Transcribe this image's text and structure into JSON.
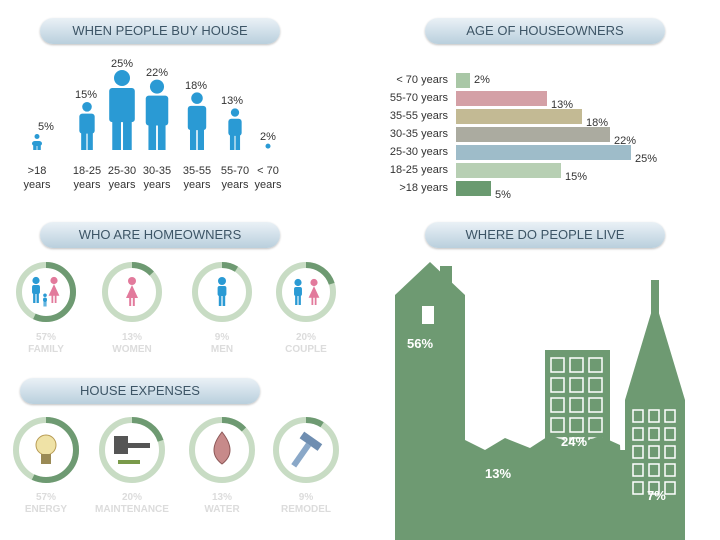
{
  "sections": {
    "when_buy": "WHEN PEOPLE BUY HOUSE",
    "age_owners": "AGE OF HOUSEOWNERS",
    "who_owners": "WHO ARE HOMEOWNERS",
    "where_live": "WHERE DO PEOPLE LIVE",
    "expenses": "HOUSE EXPENSES"
  },
  "colors": {
    "blue": "#2a9ad4",
    "pink": "#e27a9c",
    "green": "#6e9a72",
    "ring": "#c8dcc4",
    "ring_fill": "#6e9a72"
  },
  "chart_data": [
    {
      "type": "bar",
      "title": "WHEN PEOPLE BUY HOUSE",
      "categories": [
        ">18 years",
        "18-25 years",
        "25-30 years",
        "30-35 years",
        "35-55 years",
        "55-70 years",
        "< 70 years"
      ],
      "values": [
        5,
        15,
        25,
        22,
        18,
        13,
        2
      ],
      "value_labels": [
        "5%",
        "15%",
        "25%",
        "22%",
        "18%",
        "13%",
        "2%"
      ],
      "cat_top": [
        ">18",
        "18-25",
        "25-30",
        "30-35",
        "35-55",
        "55-70",
        "< 70"
      ],
      "cat_bottom": [
        "years",
        "years",
        "years",
        "years",
        "years",
        "years",
        "years"
      ]
    },
    {
      "type": "bar",
      "title": "AGE OF HOUSEOWNERS",
      "orientation": "horizontal",
      "categories": [
        "< 70 years",
        "55-70 years",
        "35-55 years",
        "30-35 years",
        "25-30 years",
        "18-25 years",
        ">18 years"
      ],
      "values": [
        2,
        13,
        18,
        22,
        25,
        15,
        5
      ],
      "value_labels": [
        "2%",
        "13%",
        "18%",
        "22%",
        "25%",
        "15%",
        "5%"
      ],
      "colors": [
        "#a9c7a6",
        "#d4a0a6",
        "#c3ba94",
        "#ababa0",
        "#9ebcc9",
        "#b7cfb3",
        "#6a9a70"
      ]
    },
    {
      "type": "pie",
      "title": "WHO ARE HOMEOWNERS",
      "categories": [
        "FAMILY",
        "WOMEN",
        "MEN",
        "COUPLE"
      ],
      "values": [
        57,
        13,
        9,
        20
      ],
      "value_labels": [
        "57%",
        "13%",
        "9%",
        "20%"
      ]
    },
    {
      "type": "bar",
      "title": "WHERE DO PEOPLE LIVE",
      "categories": [
        "house",
        "apartment",
        "factory",
        "tower"
      ],
      "values": [
        56,
        24,
        13,
        7
      ],
      "value_labels": [
        "56%",
        "24%",
        "13%",
        "7%"
      ]
    },
    {
      "type": "pie",
      "title": "HOUSE EXPENSES",
      "categories": [
        "ENERGY",
        "MAINTENANCE",
        "WATER",
        "REMODEL"
      ],
      "values": [
        57,
        20,
        13,
        9
      ],
      "value_labels": [
        "57%",
        "20%",
        "13%",
        "9%"
      ]
    }
  ]
}
